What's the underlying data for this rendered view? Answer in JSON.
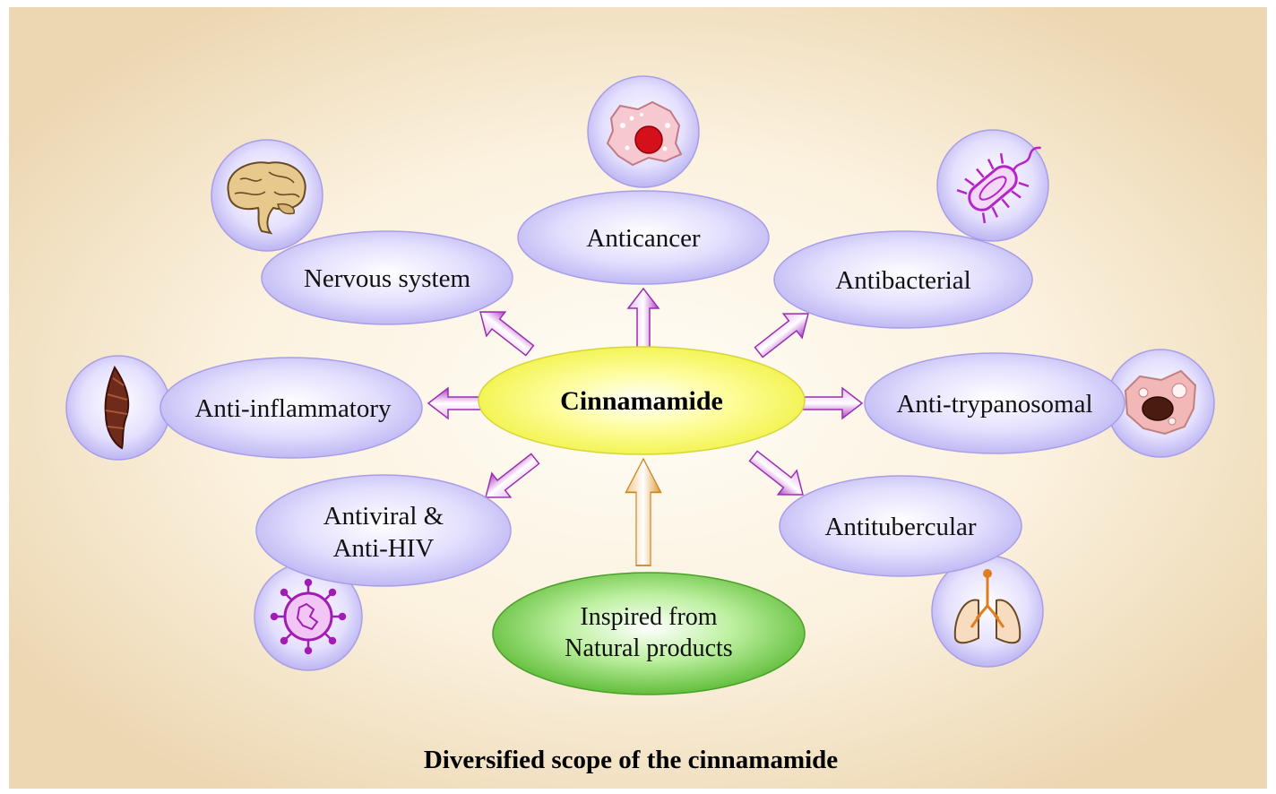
{
  "diagram": {
    "center": "Cinnamamide",
    "source": [
      "Inspired from",
      "Natural products"
    ],
    "activities": {
      "nervous_system": [
        "Nervous system"
      ],
      "anticancer": [
        "Anticancer"
      ],
      "antibacterial": [
        "Antibacterial"
      ],
      "anti_inflammatory": [
        "Anti-inflammatory"
      ],
      "anti_trypanosomal": [
        "Anti-trypanosomal"
      ],
      "antiviral": [
        "Antiviral &",
        "Anti-HIV"
      ],
      "antitubercular": [
        "Antitubercular"
      ]
    },
    "icons": {
      "nervous_system": "brain-icon",
      "anticancer": "cancer-cell-icon",
      "antibacterial": "bacterium-icon",
      "anti_inflammatory": "muscle-tissue-icon",
      "anti_trypanosomal": "trypanosome-cell-icon",
      "antiviral": "virus-icon",
      "antitubercular": "lungs-icon"
    },
    "caption": "Diversified scope of the cinnamamide"
  },
  "colors": {
    "background_center": "#fffdf6",
    "background_edge": "#eedcbc",
    "node_fill": "#dcd8ff",
    "node_edge": "#b3acf0",
    "center_fill": "#fbfb6e",
    "source_fill": "#7ed35a",
    "arrow_purple": "#b63fc9",
    "arrow_orange": "#e9a53e"
  }
}
